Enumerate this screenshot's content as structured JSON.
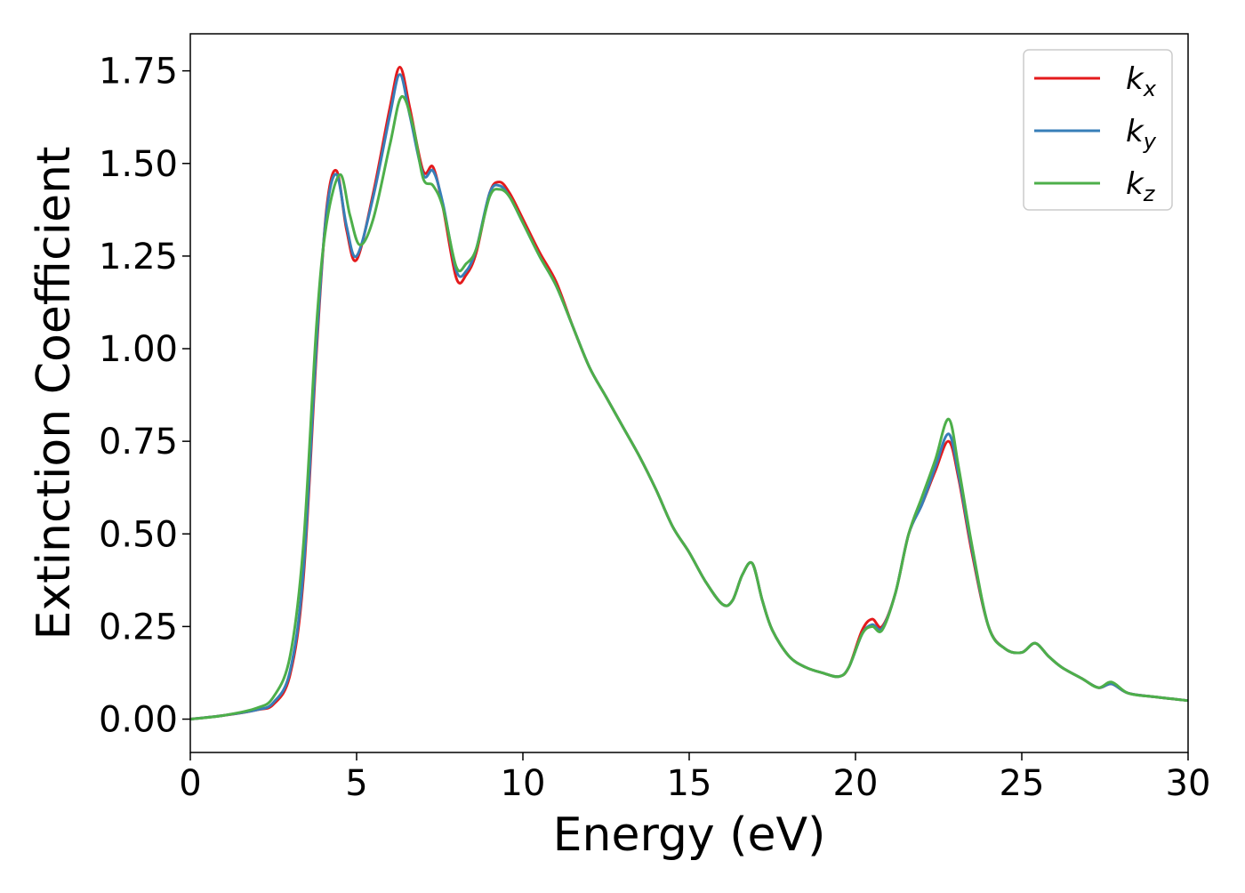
{
  "chart_data": {
    "type": "line",
    "xlabel": "Energy (eV)",
    "ylabel": "Extinction Coefficient",
    "xlim": [
      0,
      30
    ],
    "ylim": [
      -0.09,
      1.85
    ],
    "xticks": [
      0,
      5,
      10,
      15,
      20,
      25,
      30
    ],
    "yticks": [
      0.0,
      0.25,
      0.5,
      0.75,
      1.0,
      1.25,
      1.5,
      1.75
    ],
    "grid": false,
    "legend_position": "top-right",
    "series": [
      {
        "name_base": "k",
        "name_sub": "x",
        "color": "#e41a1c",
        "x": [
          0,
          1,
          2,
          2.5,
          3,
          3.4,
          3.8,
          4.1,
          4.4,
          4.7,
          5.0,
          5.5,
          6.0,
          6.3,
          6.6,
          7.0,
          7.3,
          7.6,
          8.0,
          8.3,
          8.6,
          9.0,
          9.3,
          9.6,
          10.0,
          10.5,
          11.0,
          11.5,
          12.0,
          12.5,
          13.0,
          13.5,
          14.0,
          14.5,
          15.0,
          15.5,
          16.0,
          16.3,
          16.6,
          16.9,
          17.2,
          17.5,
          18.0,
          18.5,
          19.0,
          19.5,
          19.8,
          20.2,
          20.5,
          20.8,
          21.2,
          21.6,
          22.0,
          22.4,
          22.8,
          23.1,
          23.5,
          24.0,
          24.5,
          25.0,
          25.4,
          25.8,
          26.2,
          26.8,
          27.3,
          27.7,
          28.2,
          29.0,
          30.0
        ],
        "y": [
          0.0,
          0.01,
          0.025,
          0.04,
          0.12,
          0.38,
          1.0,
          1.38,
          1.48,
          1.32,
          1.24,
          1.42,
          1.65,
          1.76,
          1.65,
          1.48,
          1.49,
          1.38,
          1.19,
          1.2,
          1.26,
          1.42,
          1.45,
          1.42,
          1.35,
          1.26,
          1.18,
          1.06,
          0.95,
          0.87,
          0.79,
          0.71,
          0.62,
          0.52,
          0.45,
          0.37,
          0.31,
          0.32,
          0.39,
          0.42,
          0.32,
          0.24,
          0.17,
          0.14,
          0.125,
          0.115,
          0.14,
          0.24,
          0.27,
          0.25,
          0.34,
          0.5,
          0.58,
          0.67,
          0.75,
          0.65,
          0.45,
          0.25,
          0.19,
          0.18,
          0.205,
          0.17,
          0.14,
          0.11,
          0.085,
          0.095,
          0.07,
          0.06,
          0.05
        ]
      },
      {
        "name_base": "k",
        "name_sub": "y",
        "color": "#377eb8",
        "x": [
          0,
          1,
          2,
          2.5,
          3,
          3.4,
          3.8,
          4.1,
          4.4,
          4.7,
          5.0,
          5.5,
          6.0,
          6.3,
          6.6,
          7.0,
          7.3,
          7.6,
          8.0,
          8.3,
          8.6,
          9.0,
          9.3,
          9.6,
          10.0,
          10.5,
          11.0,
          11.5,
          12.0,
          12.5,
          13.0,
          13.5,
          14.0,
          14.5,
          15.0,
          15.5,
          16.0,
          16.3,
          16.6,
          16.9,
          17.2,
          17.5,
          18.0,
          18.5,
          19.0,
          19.5,
          19.8,
          20.2,
          20.5,
          20.8,
          21.2,
          21.6,
          22.0,
          22.4,
          22.8,
          23.1,
          23.5,
          24.0,
          24.5,
          25.0,
          25.4,
          25.8,
          26.2,
          26.8,
          27.3,
          27.7,
          28.2,
          29.0,
          30.0
        ],
        "y": [
          0.0,
          0.01,
          0.025,
          0.045,
          0.13,
          0.4,
          1.02,
          1.37,
          1.47,
          1.33,
          1.25,
          1.41,
          1.63,
          1.74,
          1.63,
          1.47,
          1.48,
          1.39,
          1.21,
          1.21,
          1.27,
          1.42,
          1.44,
          1.41,
          1.34,
          1.25,
          1.17,
          1.06,
          0.95,
          0.87,
          0.79,
          0.71,
          0.62,
          0.52,
          0.45,
          0.37,
          0.31,
          0.32,
          0.39,
          0.42,
          0.32,
          0.24,
          0.17,
          0.14,
          0.125,
          0.115,
          0.14,
          0.23,
          0.255,
          0.245,
          0.34,
          0.5,
          0.58,
          0.68,
          0.77,
          0.66,
          0.46,
          0.25,
          0.19,
          0.18,
          0.205,
          0.17,
          0.14,
          0.11,
          0.085,
          0.095,
          0.07,
          0.06,
          0.05
        ]
      },
      {
        "name_base": "k",
        "name_sub": "z",
        "color": "#4daf4a",
        "x": [
          0,
          1,
          2,
          2.5,
          3,
          3.4,
          3.8,
          4.1,
          4.5,
          4.8,
          5.1,
          5.5,
          6.0,
          6.35,
          6.7,
          7.0,
          7.3,
          7.6,
          8.0,
          8.3,
          8.6,
          9.0,
          9.3,
          9.6,
          10.0,
          10.5,
          11.0,
          11.5,
          12.0,
          12.5,
          13.0,
          13.5,
          14.0,
          14.5,
          15.0,
          15.5,
          16.0,
          16.3,
          16.6,
          16.9,
          17.2,
          17.5,
          18.0,
          18.5,
          19.0,
          19.5,
          19.8,
          20.2,
          20.5,
          20.8,
          21.2,
          21.6,
          22.0,
          22.4,
          22.8,
          23.1,
          23.5,
          24.0,
          24.5,
          25.0,
          25.4,
          25.8,
          26.2,
          26.8,
          27.3,
          27.7,
          28.2,
          29.0,
          30.0
        ],
        "y": [
          0.0,
          0.01,
          0.03,
          0.06,
          0.17,
          0.47,
          1.07,
          1.34,
          1.47,
          1.36,
          1.28,
          1.35,
          1.55,
          1.68,
          1.6,
          1.46,
          1.44,
          1.38,
          1.22,
          1.23,
          1.27,
          1.41,
          1.43,
          1.41,
          1.34,
          1.25,
          1.17,
          1.06,
          0.95,
          0.87,
          0.79,
          0.71,
          0.62,
          0.52,
          0.45,
          0.37,
          0.31,
          0.32,
          0.39,
          0.42,
          0.32,
          0.24,
          0.17,
          0.14,
          0.125,
          0.115,
          0.14,
          0.23,
          0.25,
          0.24,
          0.34,
          0.5,
          0.6,
          0.7,
          0.81,
          0.68,
          0.47,
          0.25,
          0.19,
          0.18,
          0.205,
          0.17,
          0.14,
          0.11,
          0.085,
          0.1,
          0.07,
          0.06,
          0.05
        ]
      }
    ]
  }
}
